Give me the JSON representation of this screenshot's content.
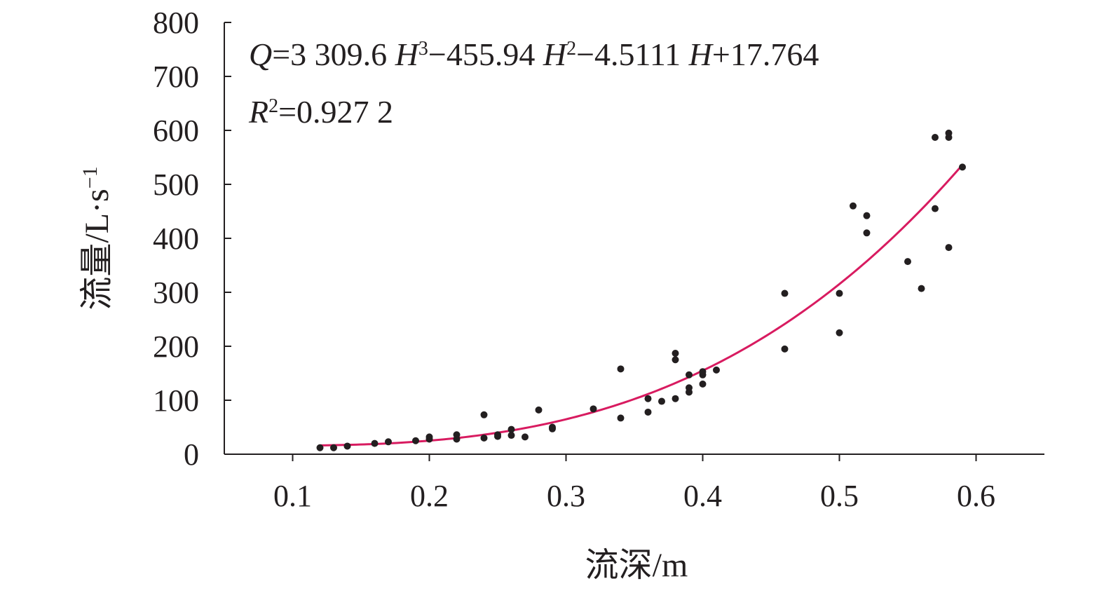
{
  "chart_data": {
    "type": "scatter",
    "xlabel": "流深/m",
    "ylabel": "流量/L·s",
    "ylabel_sup": "−1",
    "xlim": [
      0.05,
      0.65
    ],
    "ylim": [
      0,
      800
    ],
    "x_ticks": [
      0.1,
      0.2,
      0.3,
      0.4,
      0.5,
      0.6
    ],
    "x_tick_labels": [
      "0.1",
      "0.2",
      "0.3",
      "0.4",
      "0.5",
      "0.6"
    ],
    "y_ticks": [
      0,
      100,
      200,
      300,
      400,
      500,
      600,
      700,
      800
    ],
    "y_tick_labels": [
      "0",
      "100",
      "200",
      "300",
      "400",
      "500",
      "600",
      "700",
      "800"
    ],
    "grid": false,
    "annotation": {
      "line1": {
        "q": "Q",
        "eq1": "=3 309.6 ",
        "h1": "H",
        "sup1": "3",
        "mid1": "−455.94 ",
        "h2": "H",
        "sup2": "2",
        "mid2": "−4.5111 ",
        "h3": "H",
        "tail": "+17.764"
      },
      "line2": {
        "r": "R",
        "sup": "2",
        "value": "=0.927 2"
      }
    },
    "fit": {
      "type": "polynomial",
      "coefficients": [
        3309.6,
        -455.94,
        -4.5111,
        17.764
      ],
      "x_range": [
        0.12,
        0.59
      ],
      "color": "#d81b60"
    },
    "point_color": "#231f20",
    "series": [
      {
        "points": [
          [
            0.12,
            12
          ],
          [
            0.13,
            12
          ],
          [
            0.14,
            15
          ],
          [
            0.16,
            20
          ],
          [
            0.17,
            23
          ],
          [
            0.19,
            25
          ],
          [
            0.2,
            28
          ],
          [
            0.2,
            32
          ],
          [
            0.22,
            28
          ],
          [
            0.22,
            36
          ],
          [
            0.24,
            30
          ],
          [
            0.24,
            73
          ],
          [
            0.25,
            33
          ],
          [
            0.25,
            36
          ],
          [
            0.26,
            35
          ],
          [
            0.26,
            46
          ],
          [
            0.27,
            32
          ],
          [
            0.28,
            82
          ],
          [
            0.29,
            47
          ],
          [
            0.29,
            50
          ],
          [
            0.32,
            84
          ],
          [
            0.34,
            67
          ],
          [
            0.34,
            158
          ],
          [
            0.36,
            78
          ],
          [
            0.36,
            103
          ],
          [
            0.37,
            98
          ],
          [
            0.38,
            103
          ],
          [
            0.38,
            175
          ],
          [
            0.38,
            187
          ],
          [
            0.39,
            115
          ],
          [
            0.39,
            123
          ],
          [
            0.39,
            147
          ],
          [
            0.4,
            130
          ],
          [
            0.4,
            147
          ],
          [
            0.4,
            153
          ],
          [
            0.41,
            156
          ],
          [
            0.46,
            195
          ],
          [
            0.46,
            298
          ],
          [
            0.5,
            225
          ],
          [
            0.5,
            298
          ],
          [
            0.51,
            460
          ],
          [
            0.52,
            410
          ],
          [
            0.52,
            442
          ],
          [
            0.55,
            357
          ],
          [
            0.56,
            307
          ],
          [
            0.57,
            455
          ],
          [
            0.57,
            587
          ],
          [
            0.58,
            383
          ],
          [
            0.58,
            587
          ],
          [
            0.58,
            595
          ],
          [
            0.59,
            532
          ]
        ]
      }
    ]
  }
}
